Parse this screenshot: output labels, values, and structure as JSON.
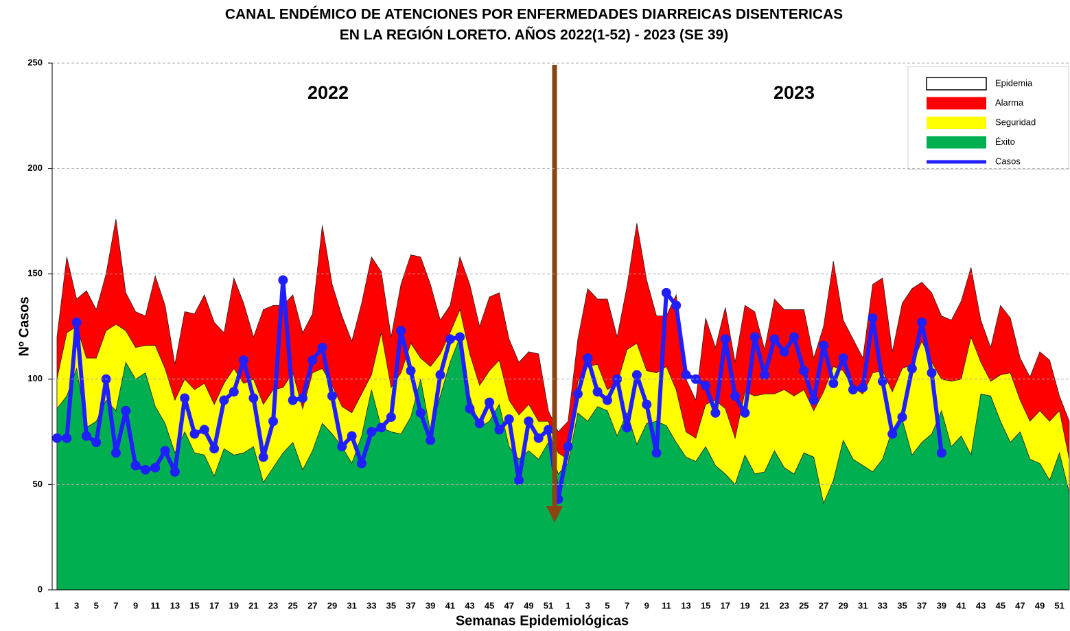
{
  "chart_data": {
    "type": "area",
    "title": [
      "CANAL ENDÉMICO DE ATENCIONES POR ENFERMEDADES DIARREICAS DISENTERICAS",
      "EN LA REGIÓN LORETO.  AÑOS 2022(1-52) - 2023 (SE 39)"
    ],
    "y_label": "Nº Casos",
    "x_label": "Semanas Epidemiológicas",
    "annotations": [
      "2022",
      "2023"
    ],
    "categories": [
      "1",
      null,
      "3",
      null,
      "5",
      null,
      "7",
      null,
      "9",
      null,
      "11",
      null,
      "13",
      null,
      "15",
      null,
      "17",
      null,
      "19",
      null,
      "21",
      null,
      "23",
      null,
      "25",
      null,
      "27",
      null,
      "29",
      null,
      "31",
      null,
      "33",
      null,
      "35",
      null,
      "37",
      null,
      "39",
      null,
      "41",
      null,
      "43",
      null,
      "45",
      null,
      "47",
      null,
      "49",
      null,
      "51",
      null,
      "1",
      null,
      "3",
      null,
      "5",
      null,
      "7",
      null,
      "9",
      null,
      "11",
      null,
      "13",
      null,
      "15",
      null,
      "17",
      null,
      "19",
      null,
      "21",
      null,
      "23",
      null,
      "25",
      null,
      "27",
      null,
      "29",
      null,
      "31",
      null,
      "33",
      null,
      "35",
      null,
      "37",
      null,
      "39",
      null,
      "41",
      null,
      "43",
      null,
      "45",
      null,
      "47",
      null,
      "49",
      null,
      "51",
      null
    ],
    "ylim": [
      0,
      250
    ],
    "yticks": [
      0,
      50,
      100,
      150,
      200,
      250
    ],
    "grid": true,
    "legend": "upper right",
    "series": [
      {
        "name": "Epidemia",
        "color": "#ffffff"
      },
      {
        "name": "Alarma",
        "color": "#ff0000",
        "values": [
          120,
          158,
          138,
          142,
          133,
          150,
          176,
          141,
          132,
          130,
          149,
          135,
          107,
          132,
          131,
          140,
          127,
          122,
          148,
          136,
          120,
          133,
          135,
          135,
          140,
          122,
          131,
          173,
          145,
          130,
          118,
          136,
          158,
          151,
          120,
          145,
          159,
          158,
          145,
          128,
          135,
          158,
          145,
          125,
          139,
          141,
          119,
          108,
          113,
          112,
          85,
          75,
          80,
          119,
          143,
          138,
          138,
          120,
          144,
          174,
          147,
          130,
          130,
          140,
          100,
          90,
          129,
          115,
          134,
          108,
          135,
          132,
          114,
          138,
          133,
          133,
          133,
          110,
          125,
          156,
          128,
          119,
          110,
          145,
          148,
          113,
          136,
          143,
          146,
          141,
          130,
          128,
          137,
          153,
          128,
          115,
          135,
          129,
          110,
          101,
          113,
          109,
          92,
          80
        ]
      },
      {
        "name": "Seguridad",
        "color": "#ffff00",
        "values": [
          100,
          122,
          125,
          110,
          110,
          123,
          126,
          123,
          115,
          116,
          116,
          105,
          90,
          100,
          95,
          98,
          88,
          98,
          105,
          98,
          100,
          88,
          95,
          96,
          103,
          86,
          103,
          105,
          97,
          87,
          84,
          93,
          102,
          122,
          96,
          103,
          117,
          110,
          106,
          112,
          122,
          133,
          112,
          97,
          104,
          109,
          90,
          83,
          88,
          80,
          80,
          65,
          62,
          99,
          106,
          107,
          95,
          98,
          114,
          117,
          104,
          103,
          106,
          95,
          75,
          72,
          88,
          90,
          86,
          72,
          94,
          92,
          93,
          93,
          95,
          92,
          95,
          85,
          94,
          106,
          104,
          96,
          93,
          103,
          104,
          94,
          105,
          107,
          118,
          108,
          100,
          99,
          100,
          120,
          108,
          99,
          102,
          103,
          90,
          80,
          85,
          80,
          85,
          62
        ]
      },
      {
        "name": "Éxito",
        "color": "#00b050",
        "values": [
          86,
          92,
          105,
          77,
          80,
          90,
          85,
          108,
          100,
          103,
          87,
          79,
          65,
          75,
          65,
          64,
          54,
          67,
          64,
          65,
          68,
          51,
          58,
          65,
          70,
          57,
          66,
          79,
          74,
          68,
          60,
          73,
          95,
          77,
          75,
          74,
          82,
          100,
          75,
          92,
          108,
          120,
          92,
          77,
          80,
          88,
          68,
          62,
          66,
          62,
          70,
          55,
          60,
          84,
          80,
          87,
          85,
          73,
          84,
          69,
          79,
          80,
          78,
          70,
          63,
          61,
          68,
          59,
          55,
          50,
          64,
          55,
          56,
          66,
          58,
          55,
          65,
          63,
          41,
          52,
          71,
          62,
          59,
          56,
          62,
          76,
          81,
          64,
          70,
          74,
          85,
          68,
          73,
          64,
          93,
          92,
          80,
          70,
          75,
          62,
          60,
          52,
          65,
          46
        ]
      },
      {
        "name": "Casos",
        "type": "line",
        "color": "#1f1fff",
        "values": [
          72,
          72,
          127,
          73,
          70,
          100,
          65,
          85,
          59,
          57,
          58,
          66,
          56,
          91,
          74,
          76,
          67,
          90,
          94,
          109,
          91,
          63,
          80,
          147,
          90,
          91,
          109,
          115,
          92,
          68,
          73,
          60,
          75,
          77,
          82,
          123,
          104,
          84,
          71,
          102,
          119,
          120,
          86,
          79,
          89,
          76,
          81,
          52,
          80,
          72,
          76,
          43,
          68,
          93,
          110,
          94,
          90,
          100,
          77,
          102,
          88,
          65,
          141,
          135,
          102,
          100,
          97,
          84,
          119,
          92,
          84,
          120,
          102,
          119,
          113,
          120,
          104,
          90,
          116,
          98,
          110,
          95,
          96,
          129,
          99,
          74,
          82,
          105,
          127,
          103,
          65,
          null,
          null,
          null,
          null,
          null,
          null,
          null,
          null,
          null,
          null,
          null,
          null,
          null
        ]
      }
    ]
  }
}
